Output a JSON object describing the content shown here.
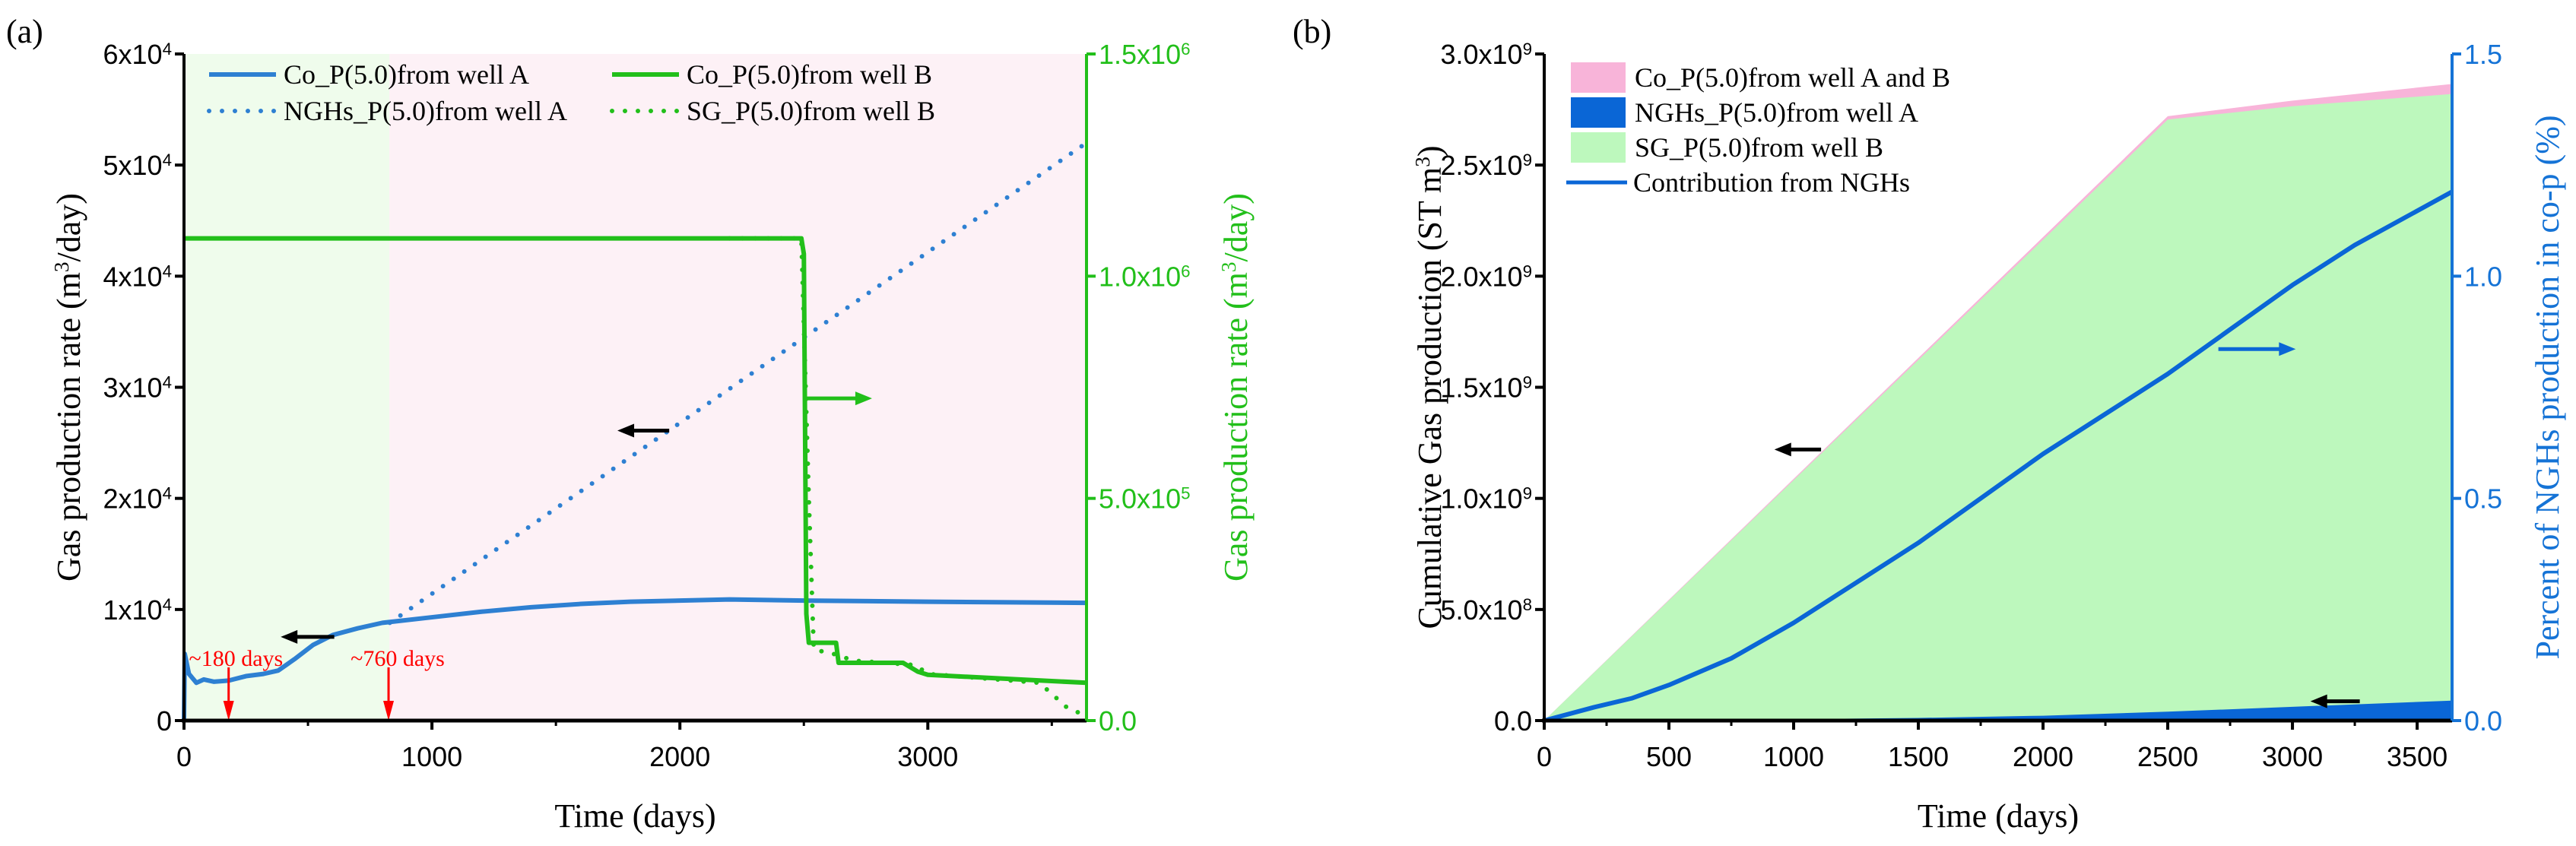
{
  "chart_data": [
    {
      "panel_label": "(a)",
      "type": "line",
      "xlabel": "Time (days)",
      "ylabel": "Gas production rate (m^3/day)",
      "ylabel_right": "Gas production rate (m^3/day)",
      "xlim": [
        0,
        3640
      ],
      "ylim": [
        0,
        60000
      ],
      "ylim_right": [
        0,
        1500000
      ],
      "x_ticks": [
        {
          "v": 0,
          "label": "0"
        },
        {
          "v": 1000,
          "label": "1000"
        },
        {
          "v": 2000,
          "label": "2000"
        },
        {
          "v": 3000,
          "label": "3000"
        }
      ],
      "x_minor": [
        500,
        1500,
        2500,
        3500
      ],
      "y_ticks": [
        {
          "v": 0,
          "label": "0"
        },
        {
          "v": 10000,
          "label": "1x10^4"
        },
        {
          "v": 20000,
          "label": "2x10^4"
        },
        {
          "v": 30000,
          "label": "3x10^4"
        },
        {
          "v": 40000,
          "label": "4x10^4"
        },
        {
          "v": 50000,
          "label": "5x10^4"
        },
        {
          "v": 60000,
          "label": "6x10^4"
        }
      ],
      "y_ticks_right": [
        {
          "v": 0,
          "label": "0.0"
        },
        {
          "v": 500000,
          "label": "5.0x10^5"
        },
        {
          "v": 1000000,
          "label": "1.0x10^6"
        },
        {
          "v": 1500000,
          "label": "1.5x10^6"
        }
      ],
      "regions": [
        {
          "from": 0,
          "to": 828,
          "color": "#effcec"
        },
        {
          "from": 828,
          "to": 3640,
          "color": "#fdf1f6"
        }
      ],
      "series": [
        {
          "name": "Co_P(5.0)from well A",
          "axis": "left",
          "style": "solid",
          "color": "#2e80d2",
          "points": [
            [
              0,
              0
            ],
            [
              3,
              6000
            ],
            [
              20,
              4200
            ],
            [
              50,
              3400
            ],
            [
              80,
              3700
            ],
            [
              120,
              3500
            ],
            [
              180,
              3600
            ],
            [
              250,
              4000
            ],
            [
              320,
              4200
            ],
            [
              380,
              4500
            ],
            [
              450,
              5600
            ],
            [
              520,
              6800
            ],
            [
              600,
              7700
            ],
            [
              700,
              8300
            ],
            [
              800,
              8800
            ],
            [
              1000,
              9300
            ],
            [
              1200,
              9800
            ],
            [
              1400,
              10200
            ],
            [
              1600,
              10500
            ],
            [
              1800,
              10700
            ],
            [
              2000,
              10800
            ],
            [
              2200,
              10900
            ],
            [
              2500,
              10800
            ],
            [
              3000,
              10700
            ],
            [
              3640,
              10600
            ]
          ]
        },
        {
          "name": "NGHs_P(5.0)from well A",
          "axis": "left",
          "style": "dotted",
          "color": "#2e80d2",
          "points": [
            [
              830,
              8800
            ],
            [
              3640,
              52000
            ]
          ]
        },
        {
          "name": "Co_P(5.0)from well B",
          "axis": "right",
          "style": "solid",
          "color": "#22bf1a",
          "points": [
            [
              0,
              1085000
            ],
            [
              2490,
              1085000
            ],
            [
              2500,
              1050000
            ],
            [
              2510,
              240000
            ],
            [
              2520,
              175000
            ],
            [
              2630,
              175000
            ],
            [
              2640,
              130000
            ],
            [
              2900,
              130000
            ],
            [
              2960,
              110000
            ],
            [
              3000,
              103000
            ],
            [
              3640,
              85000
            ]
          ]
        },
        {
          "name": "SG_P(5.0)from well B",
          "axis": "right",
          "style": "dotted",
          "color": "#22bf1a",
          "points": [
            [
              2200,
              1085000
            ],
            [
              2490,
              1085000
            ],
            [
              2520,
              500000
            ],
            [
              2540,
              160000
            ],
            [
              2620,
              150000
            ],
            [
              2700,
              135000
            ],
            [
              2950,
              125000
            ],
            [
              3000,
              105000
            ],
            [
              3450,
              85000
            ],
            [
              3560,
              30000
            ],
            [
              3640,
              10000
            ]
          ]
        }
      ],
      "annotations": [
        {
          "type": "arrow",
          "color": "#000000",
          "from": [
            1957,
            26100
          ],
          "to": [
            1748,
            26100
          ],
          "axis": "left"
        },
        {
          "type": "arrow",
          "color": "#000000",
          "from": [
            606,
            7530
          ],
          "to": [
            390,
            7530
          ],
          "axis": "left"
        },
        {
          "type": "arrow",
          "color": "#22bf1a",
          "from": [
            2503,
            725000
          ],
          "to": [
            2775,
            725000
          ],
          "axis": "right"
        },
        {
          "type": "down-arrow",
          "color": "#ff0000",
          "x": 180,
          "text": "~180 days",
          "text_at": [
            20,
            5900
          ]
        },
        {
          "type": "down-arrow",
          "color": "#ff0000",
          "x": 825,
          "text": "~760 days",
          "text_at": [
            672,
            5900
          ]
        }
      ]
    },
    {
      "panel_label": "(b)",
      "type": "area",
      "xlabel": "Time (days)",
      "ylabel": "Cumulative Gas production (ST m^3)",
      "ylabel_right": "Percent of NGHs production in co-p (%)",
      "xlim": [
        0,
        3640
      ],
      "ylim": [
        0,
        3000000000
      ],
      "ylim_right": [
        0,
        1.5
      ],
      "x_ticks": [
        {
          "v": 0,
          "label": "0"
        },
        {
          "v": 500,
          "label": "500"
        },
        {
          "v": 1000,
          "label": "1000"
        },
        {
          "v": 1500,
          "label": "1500"
        },
        {
          "v": 2000,
          "label": "2000"
        },
        {
          "v": 2500,
          "label": "2500"
        },
        {
          "v": 3000,
          "label": "3000"
        },
        {
          "v": 3500,
          "label": "3500"
        }
      ],
      "x_minor": [
        250,
        750,
        1250,
        1750,
        2250,
        2750,
        3250
      ],
      "y_ticks": [
        {
          "v": 0,
          "label": "0.0"
        },
        {
          "v": 500000000,
          "label": "5.0x10^8"
        },
        {
          "v": 1000000000,
          "label": "1.0x10^9"
        },
        {
          "v": 1500000000,
          "label": "1.5x10^9"
        },
        {
          "v": 2000000000,
          "label": "2.0x10^9"
        },
        {
          "v": 2500000000,
          "label": "2.5x10^9"
        },
        {
          "v": 3000000000,
          "label": "3.0x10^9"
        }
      ],
      "y_ticks_right": [
        {
          "v": 0,
          "label": "0.0"
        },
        {
          "v": 0.5,
          "label": "0.5"
        },
        {
          "v": 1.0,
          "label": "1.0"
        },
        {
          "v": 1.5,
          "label": "1.5"
        }
      ],
      "series": [
        {
          "name": "Co_P(5.0)from well A and B",
          "kind": "area",
          "color": "#f8b4d9",
          "points": [
            [
              0,
              0
            ],
            [
              2500,
              2720000000
            ],
            [
              3000,
              2790000000
            ],
            [
              3640,
              2865000000
            ]
          ]
        },
        {
          "name": "NGHs_P(5.0)from well A",
          "kind": "area",
          "color": "#0a66d6",
          "points": [
            [
              0,
              0
            ],
            [
              500,
              2000000
            ],
            [
              1000,
              6000000
            ],
            [
              1500,
              12000000
            ],
            [
              2000,
              22000000
            ],
            [
              2500,
              40000000
            ],
            [
              3000,
              62000000
            ],
            [
              3640,
              90000000
            ]
          ]
        },
        {
          "name": "SG_P(5.0)from well B",
          "kind": "area",
          "color": "#bdf8bd",
          "points": [
            [
              0,
              0
            ],
            [
              2500,
              2705000000
            ],
            [
              3000,
              2765000000
            ],
            [
              3640,
              2820000000
            ]
          ]
        },
        {
          "name": "Contribution from NGHs",
          "kind": "line",
          "axis": "right",
          "color": "#0a66d6",
          "points": [
            [
              0,
              0
            ],
            [
              200,
              0.03
            ],
            [
              350,
              0.05
            ],
            [
              500,
              0.08
            ],
            [
              750,
              0.14
            ],
            [
              1000,
              0.22
            ],
            [
              1250,
              0.31
            ],
            [
              1500,
              0.4
            ],
            [
              1750,
              0.5
            ],
            [
              2000,
              0.6
            ],
            [
              2250,
              0.69
            ],
            [
              2500,
              0.78
            ],
            [
              2750,
              0.88
            ],
            [
              3000,
              0.98
            ],
            [
              3250,
              1.07
            ],
            [
              3640,
              1.19
            ]
          ]
        }
      ],
      "annotations": [
        {
          "type": "arrow",
          "color": "#000000",
          "from": [
            1110,
            1220000000
          ],
          "to": [
            923,
            1220000000
          ],
          "axis": "left"
        },
        {
          "type": "arrow",
          "color": "#0a66d6",
          "from": [
            2703,
            0.836
          ],
          "to": [
            3013,
            0.836
          ],
          "axis": "right"
        },
        {
          "type": "arrow",
          "color": "#000000",
          "from": [
            3270,
            87000000
          ],
          "to": [
            3072,
            87000000
          ],
          "axis": "left"
        }
      ]
    }
  ]
}
